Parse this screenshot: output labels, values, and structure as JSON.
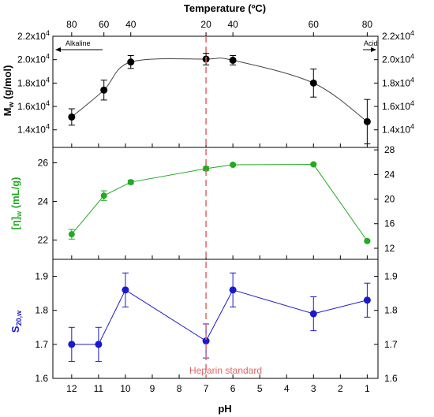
{
  "chart_data": [
    {
      "type": "line",
      "x_axis": {
        "label": "pH",
        "reversed": true,
        "xlim": [
          12.7,
          0.6
        ],
        "ticks": [
          "12",
          "11",
          "10",
          "9",
          "8",
          "7",
          "6",
          "5",
          "4",
          "3",
          "2",
          "1"
        ]
      },
      "top_axis": {
        "label": "Temperature (ºC)",
        "ticks": [
          {
            "ph": 12,
            "label": "80"
          },
          {
            "ph": 10.8,
            "label": "60"
          },
          {
            "ph": 9.8,
            "label": "40"
          },
          {
            "ph": 7,
            "label": "20"
          },
          {
            "ph": 6,
            "label": "40"
          },
          {
            "ph": 3,
            "label": "60"
          },
          {
            "ph": 1,
            "label": "80"
          }
        ]
      },
      "annotations": {
        "left": "Alkaline",
        "right": "Acid",
        "reference_line": {
          "ph": 7,
          "label": "Heparin standard",
          "color": "#e06666"
        }
      }
    },
    {
      "type": "line",
      "panel": "top",
      "ylabel": "M_w (g/mol)",
      "ylabel_main": "M",
      "ylabel_sub": "w",
      "ylabel_rest": " (g/mol)",
      "ylim": [
        12500,
        22000
      ],
      "ytick_mantissas": [
        "1.4x10",
        "1.6x10",
        "1.8x10",
        "2.0x10",
        "2.2x10"
      ],
      "ytick_exponent": "4",
      "ytick_values": [
        14000,
        16000,
        18000,
        20000,
        22000
      ],
      "series": [
        {
          "color": "#000000",
          "fit": "smooth",
          "points": [
            {
              "x": 12,
              "y": 15100,
              "err": 700
            },
            {
              "x": 10.8,
              "y": 17400,
              "err": 850
            },
            {
              "x": 9.8,
              "y": 19800,
              "err": 550
            },
            {
              "x": 7,
              "y": 20050,
              "err": 500
            },
            {
              "x": 6,
              "y": 19950,
              "err": 400
            },
            {
              "x": 3,
              "y": 18000,
              "err": 1200
            },
            {
              "x": 1,
              "y": 14700,
              "err": 1900
            }
          ]
        }
      ]
    },
    {
      "type": "line",
      "panel": "middle",
      "ylabel": "[η]_w (mL/g)",
      "ylabel_main": "[η]",
      "ylabel_sub": "w",
      "ylabel_rest": " (mL/g)",
      "color": "#22aa22",
      "left_ylim": [
        21.0,
        26.8
      ],
      "left_ticks": [
        "22",
        "24",
        "26"
      ],
      "left_tick_values": [
        22,
        24,
        26
      ],
      "right_ylim": [
        10.2,
        28.4
      ],
      "right_ticks": [
        "12",
        "16",
        "20",
        "24",
        "28"
      ],
      "right_tick_values": [
        12,
        16,
        20,
        24,
        28
      ],
      "series": [
        {
          "color": "#22aa22",
          "points": [
            {
              "x": 12,
              "y": 22.3,
              "err": 0.25
            },
            {
              "x": 10.8,
              "y": 24.3,
              "err": 0.25
            },
            {
              "x": 9.8,
              "y": 25.0,
              "err": 0.1
            },
            {
              "x": 7,
              "y": 25.7,
              "err": 0.1
            },
            {
              "x": 6,
              "y": 25.9,
              "err": 0.05
            },
            {
              "x": 3,
              "y": 25.92,
              "err": 0.05
            },
            {
              "x": 1,
              "y": 21.95,
              "err": 0.05
            }
          ]
        }
      ]
    },
    {
      "type": "line",
      "panel": "bottom",
      "ylabel": "S_20,w",
      "ylabel_main": "S",
      "ylabel_sub": "20,w",
      "ylabel_rest": "",
      "color": "#1a1acc",
      "ylim": [
        1.6,
        1.95
      ],
      "ticks": [
        "1.6",
        "1.7",
        "1.8",
        "1.9"
      ],
      "tick_values": [
        1.6,
        1.7,
        1.8,
        1.9
      ],
      "series": [
        {
          "color": "#1a1acc",
          "points": [
            {
              "x": 12,
              "y": 1.7,
              "err": 0.05
            },
            {
              "x": 11,
              "y": 1.7,
              "err": 0.05
            },
            {
              "x": 10,
              "y": 1.86,
              "err": 0.05
            },
            {
              "x": 7,
              "y": 1.71,
              "err": 0.05
            },
            {
              "x": 6,
              "y": 1.86,
              "err": 0.05
            },
            {
              "x": 3,
              "y": 1.79,
              "err": 0.05
            },
            {
              "x": 1,
              "y": 1.83,
              "err": 0.05
            }
          ]
        }
      ]
    }
  ]
}
